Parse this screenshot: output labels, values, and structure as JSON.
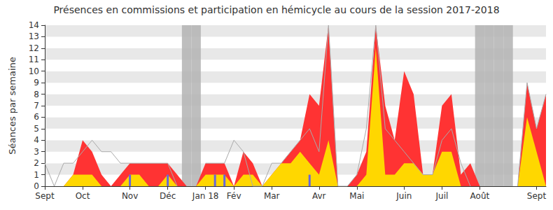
{
  "chart_data": {
    "type": "line",
    "title": "Présences en commissions et participation en hémicycle au cours de la session 2017-2018",
    "y_label": "Séances par semaine",
    "categories": [
      "Sept",
      null,
      null,
      null,
      "Oct",
      null,
      null,
      null,
      null,
      "Nov",
      null,
      null,
      null,
      "Déc",
      null,
      null,
      null,
      "Jan 18",
      null,
      null,
      "Fév",
      null,
      null,
      null,
      "Mar",
      null,
      null,
      null,
      null,
      "Avr",
      null,
      null,
      null,
      "Mai",
      null,
      null,
      null,
      null,
      "Juin",
      null,
      null,
      null,
      "Juil",
      null,
      null,
      null,
      "Août",
      null,
      null,
      null,
      null,
      null,
      "Sept",
      null
    ],
    "ylim": [
      0,
      14
    ],
    "yticks": [
      0,
      1,
      2,
      3,
      4,
      5,
      6,
      7,
      8,
      9,
      10,
      11,
      12,
      13,
      14
    ],
    "grid": true,
    "series": [
      {
        "type": "bar",
        "color": "#b3b3b3",
        "values": [
          null,
          null,
          null,
          null,
          null,
          null,
          null,
          null,
          null,
          null,
          null,
          null,
          null,
          null,
          null,
          14,
          14,
          null,
          null,
          null,
          null,
          null,
          null,
          null,
          null,
          null,
          null,
          null,
          null,
          null,
          null,
          null,
          null,
          null,
          null,
          null,
          null,
          null,
          null,
          null,
          null,
          null,
          null,
          null,
          null,
          null,
          14,
          14,
          14,
          14,
          null,
          null,
          null,
          null
        ]
      },
      {
        "type": "area",
        "color": "#ff3333",
        "values": [
          0,
          0,
          0,
          1,
          4,
          3,
          1,
          0,
          1,
          2,
          2,
          2,
          2,
          2,
          1,
          0,
          0,
          2,
          2,
          2,
          0,
          3,
          2,
          0,
          1,
          2,
          3,
          4,
          8,
          7,
          14,
          0,
          0,
          1,
          3,
          14,
          7,
          4,
          10,
          8,
          1,
          1,
          7,
          8,
          1,
          2,
          0,
          0,
          0,
          0,
          0,
          9,
          5,
          8
        ]
      },
      {
        "type": "area",
        "color": "#ffd700",
        "values": [
          0,
          0,
          0,
          1,
          1,
          1,
          0,
          0,
          0,
          1,
          1,
          0,
          0,
          1,
          0,
          0,
          0,
          1,
          1,
          1,
          0,
          1,
          1,
          0,
          1,
          2,
          2,
          3,
          2,
          1,
          4,
          0,
          0,
          0,
          1,
          12,
          1,
          1,
          2,
          2,
          1,
          1,
          3,
          3,
          0,
          0,
          0,
          0,
          0,
          0,
          0,
          6,
          3,
          0
        ]
      },
      {
        "type": "line",
        "color": "#aaaaaa",
        "values": [
          2,
          0,
          2,
          2,
          3,
          4,
          3,
          3,
          2,
          2,
          2,
          2,
          2,
          2,
          0,
          null,
          null,
          2,
          2,
          2,
          4,
          3,
          0,
          0,
          2,
          2,
          3,
          4,
          5,
          3,
          14,
          0,
          0,
          1,
          5,
          14,
          5,
          4,
          3,
          2,
          1,
          1,
          4,
          5,
          2,
          0,
          null,
          null,
          null,
          null,
          0,
          9,
          5,
          8
        ]
      },
      {
        "type": "bar",
        "color": "#6666dd",
        "values": [
          null,
          null,
          null,
          null,
          null,
          null,
          null,
          null,
          null,
          1,
          null,
          null,
          null,
          1,
          null,
          null,
          null,
          null,
          1,
          1,
          null,
          null,
          null,
          null,
          null,
          null,
          null,
          null,
          1,
          null,
          null,
          null,
          null,
          null,
          null,
          null,
          null,
          null,
          null,
          null,
          null,
          null,
          null,
          null,
          null,
          null,
          null,
          null,
          null,
          null,
          null,
          null,
          null,
          null
        ]
      }
    ]
  }
}
